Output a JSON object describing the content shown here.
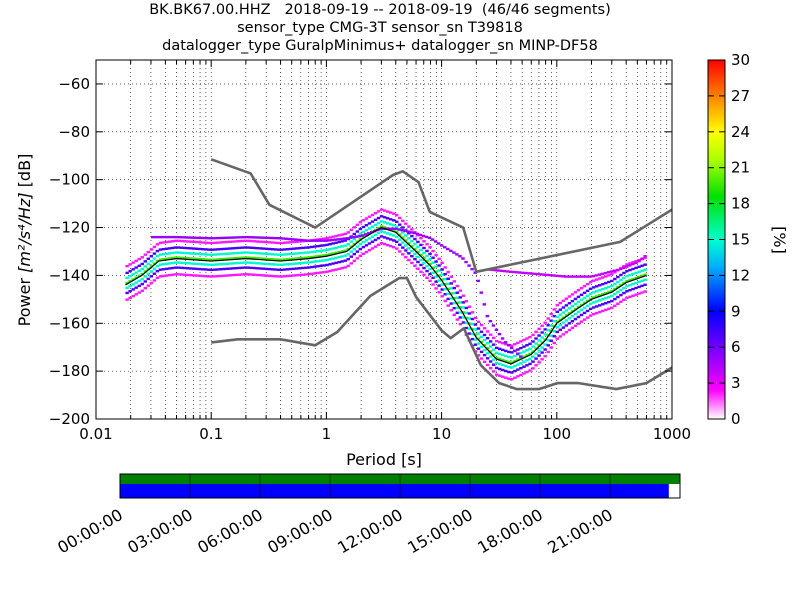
{
  "title": {
    "line1": "BK.BK67.00.HHZ   2018-09-19 -- 2018-09-19  (46/46 segments)",
    "line2": "sensor_type CMG-3T sensor_sn T39818",
    "line3": "datalogger_type GuralpMinimus+ datalogger_sn MINP-DF58"
  },
  "chart_data": {
    "type": "heatmap",
    "xlabel": "Period [s]",
    "ylabel_prefix": "Power ",
    "ylabel_math": "[m²/s⁴/Hz]",
    "ylabel_suffix": " [dB]",
    "x_scale": "log",
    "xlim": [
      0.01,
      1000
    ],
    "ylim": [
      -200,
      -50
    ],
    "x_ticks": [
      {
        "value": 0.01,
        "label": "0.01"
      },
      {
        "value": 0.1,
        "label": "0.1"
      },
      {
        "value": 1,
        "label": "1"
      },
      {
        "value": 10,
        "label": "10"
      },
      {
        "value": 100,
        "label": "100"
      },
      {
        "value": 1000,
        "label": "1000"
      }
    ],
    "y_ticks": [
      -60,
      -80,
      -100,
      -120,
      -140,
      -160,
      -180,
      -200
    ],
    "grid": true,
    "colorbar": {
      "label": "[%]",
      "min": 0,
      "max": 30,
      "ticks": [
        0,
        3,
        6,
        9,
        12,
        15,
        18,
        21,
        24,
        27,
        30
      ]
    },
    "series": [
      {
        "role": "high-noise-model",
        "color": "#666666",
        "x": [
          0.1,
          0.22,
          0.32,
          0.8,
          3.8,
          4.6,
          6.3,
          7.9,
          15.4,
          20,
          354.8,
          1000
        ],
        "y": [
          -91.5,
          -97.4,
          -110.5,
          -120,
          -98,
          -96.5,
          -101,
          -113.5,
          -120,
          -138.5,
          -126,
          -112.5
        ]
      },
      {
        "role": "low-noise-model",
        "color": "#666666",
        "x": [
          0.1,
          0.17,
          0.4,
          0.8,
          1.24,
          2.4,
          4.3,
          5,
          6,
          10,
          12,
          15.6,
          21.9,
          31.6,
          45,
          70,
          101,
          154,
          328,
          600,
          1000
        ],
        "y": [
          -168,
          -166.7,
          -166.7,
          -169.2,
          -163.7,
          -148.6,
          -141.1,
          -141.1,
          -149,
          -163,
          -166.2,
          -162.1,
          -177.5,
          -185,
          -187.5,
          -187.5,
          -185,
          -185,
          -187.5,
          -185,
          -178.5
        ]
      },
      {
        "role": "mode",
        "color": "#000000",
        "x": [
          0.018,
          0.025,
          0.035,
          0.05,
          0.1,
          0.2,
          0.4,
          0.7,
          1,
          1.5,
          2,
          3,
          4,
          6,
          8,
          10,
          15,
          20,
          30,
          40,
          60,
          80,
          100,
          150,
          200,
          300,
          400,
          600
        ],
        "y": [
          -144,
          -140,
          -134,
          -133,
          -134,
          -133,
          -134,
          -133,
          -132,
          -130,
          -125,
          -120,
          -122,
          -130,
          -136,
          -142,
          -155,
          -166,
          -175,
          -177,
          -173,
          -167,
          -160,
          -154,
          -150,
          -147,
          -143,
          -140
        ]
      }
    ],
    "pdf_bands": [
      {
        "x": [
          0.018,
          0.025,
          0.035,
          0.05,
          0.1,
          0.2,
          0.4,
          0.7,
          1,
          1.5,
          2,
          3,
          4,
          6,
          8,
          10,
          15,
          20,
          30,
          40,
          60,
          80,
          100,
          150,
          200,
          300,
          400,
          600
        ],
        "y": [
          -144,
          -140,
          -134,
          -133,
          -134,
          -133,
          -134,
          -133,
          -132,
          -130,
          -125,
          -120,
          -122,
          -130,
          -136,
          -142,
          -155,
          -166,
          -175,
          -177,
          -173,
          -167,
          -160,
          -154,
          -150,
          -147,
          -143,
          -140
        ],
        "spread": 7,
        "level": 18
      },
      {
        "x": [
          0.03,
          0.05,
          0.1,
          0.2,
          0.4,
          0.7,
          1,
          1.5,
          2,
          3,
          4,
          6,
          8,
          10,
          15,
          20,
          25,
          35,
          50
        ],
        "y": [
          -124.5,
          -124.5,
          -125,
          -124.5,
          -125,
          -126,
          -126,
          -125,
          -124,
          -121,
          -121,
          -123,
          -125,
          -128,
          -133,
          -140,
          -158,
          -168,
          -175
        ],
        "spread": 0,
        "level": 5
      },
      {
        "x": [
          25,
          40,
          70,
          120,
          200,
          350,
          500,
          600
        ],
        "y": [
          -138,
          -139,
          -140,
          -141,
          -141,
          -138,
          -135,
          -132
        ],
        "spread": 0,
        "level": 4
      }
    ],
    "time_coverage": {
      "tick_labels": [
        "00:00:00",
        "03:00:00",
        "06:00:00",
        "09:00:00",
        "12:00:00",
        "15:00:00",
        "18:00:00",
        "21:00:00"
      ],
      "rows": [
        {
          "color": "#008000",
          "coverage": 1.0
        },
        {
          "color": "#0000ff",
          "coverage": 0.98
        }
      ]
    }
  }
}
